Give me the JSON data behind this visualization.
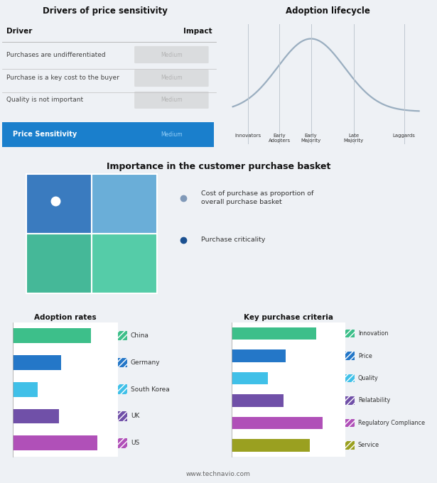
{
  "title_top_left": "Drivers of price sensitivity",
  "title_top_right": "Adoption lifecycle",
  "title_mid": "Importance in the customer purchase basket",
  "title_bot_left": "Adoption rates",
  "title_bot_right": "Key purchase criteria",
  "footer": "www.technavio.com",
  "bg_top": "#eef1f5",
  "bg_mid": "#d8e4f0",
  "bg_bot": "#ffffff",
  "drivers": [
    {
      "driver": "Purchases are undifferentiated",
      "impact": "Medium"
    },
    {
      "driver": "Purchase is a key cost to the buyer",
      "impact": "Medium"
    },
    {
      "driver": "Quality is not important",
      "impact": "Medium"
    }
  ],
  "price_sensitivity_label": "Price Sensitivity",
  "price_sensitivity_impact": "Medium",
  "price_sensitivity_bg": "#1a7fcc",
  "lifecycle_stages": [
    "Innovators",
    "Early\nAdopters",
    "Early\nMajority",
    "Late\nMajority",
    "Laggards"
  ],
  "adoption_countries": [
    "China",
    "Germany",
    "South Korea",
    "UK",
    "US"
  ],
  "adoption_values": [
    0.82,
    0.5,
    0.26,
    0.48,
    0.88
  ],
  "adoption_colors": [
    "#3dbf8a",
    "#2477c8",
    "#40c0e8",
    "#7050a8",
    "#b050b8"
  ],
  "criteria_labels": [
    "Innovation",
    "Price",
    "Quality",
    "Relatability",
    "Regulatory Compliance",
    "Service"
  ],
  "criteria_values": [
    0.82,
    0.52,
    0.35,
    0.5,
    0.88,
    0.76
  ],
  "criteria_colors": [
    "#3dbf8a",
    "#2477c8",
    "#40c0e8",
    "#7050a8",
    "#b050b8",
    "#9aa020"
  ],
  "quad_colors": {
    "top_left": "#3a7bbf",
    "top_right": "#6aaed8",
    "bot_left": "#45b898",
    "bot_right": "#55cca8"
  },
  "legend_dot_color1": "#8099b8",
  "legend_dot_color2": "#1a5090",
  "legend_text1": "Cost of purchase as proportion of\noverall purchase basket",
  "legend_text2": "Purchase criticality"
}
